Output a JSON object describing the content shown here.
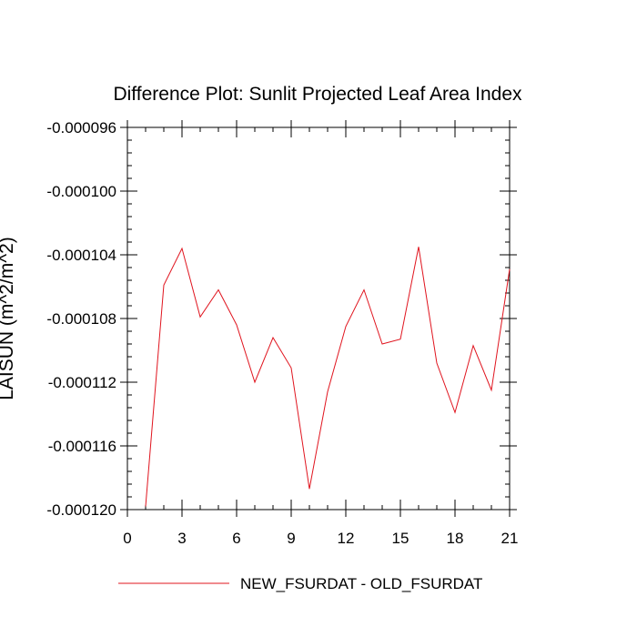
{
  "chart_data": {
    "type": "line",
    "title": "Difference Plot: Sunlit Projected Leaf Area Index",
    "xlabel": "",
    "ylabel": "LAISUN  (m^2/m^2)",
    "xlim": [
      0,
      21
    ],
    "ylim": [
      -0.00012,
      -9.6e-05
    ],
    "x_ticks": [
      "0",
      "3",
      "6",
      "9",
      "12",
      "15",
      "18",
      "21"
    ],
    "x_tick_values": [
      0,
      3,
      6,
      9,
      12,
      15,
      18,
      21
    ],
    "y_ticks": [
      "-0.000096",
      "-0.000100",
      "-0.000104",
      "-0.000108",
      "-0.000112",
      "-0.000116",
      "-0.000120"
    ],
    "y_tick_values": [
      -9.6e-05,
      -0.0001,
      -0.000104,
      -0.000108,
      -0.000112,
      -0.000116,
      -0.00012
    ],
    "grid": false,
    "legend_position": "bottom",
    "series": [
      {
        "name": "NEW_FSURDAT - OLD_FSURDAT",
        "color": "#e0141e",
        "x": [
          1,
          2,
          3,
          4,
          5,
          6,
          7,
          8,
          9,
          10,
          11,
          12,
          13,
          14,
          15,
          16,
          17,
          18,
          19,
          20,
          21
        ],
        "values": [
          -0.0001198,
          -0.0001059,
          -0.0001036,
          -0.0001079,
          -0.0001062,
          -0.0001084,
          -0.000112,
          -0.0001092,
          -0.0001111,
          -0.0001187,
          -0.0001126,
          -0.0001085,
          -0.0001062,
          -0.0001096,
          -0.0001093,
          -0.0001035,
          -0.0001108,
          -0.0001139,
          -0.0001097,
          -0.0001125,
          -0.0001049
        ]
      }
    ]
  }
}
